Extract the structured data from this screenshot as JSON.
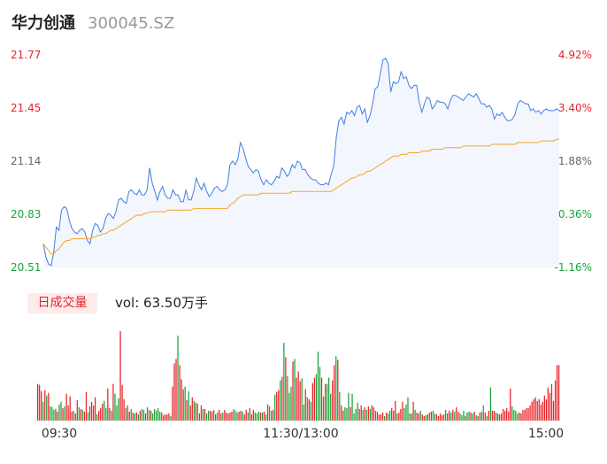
{
  "header": {
    "name": "华力创通",
    "code": "300045.SZ"
  },
  "volume_panel": {
    "tab_label": "日成交量",
    "vol_text": "vol: 63.50万手"
  },
  "colors": {
    "price_line": "#3f7fe0",
    "avg_line": "#f5a524",
    "area_fill": "#f3f6fd",
    "up": "#e8232a",
    "down": "#1aa33a",
    "neutral": "#666666"
  },
  "chart_data": [
    {
      "type": "line",
      "title": "",
      "y_ticks_left": [
        "21.77",
        "21.45",
        "21.14",
        "20.83",
        "20.51"
      ],
      "y_ticks_right": [
        "4.92%",
        "3.40%",
        "1.88%",
        "0.36%",
        "-1.16%"
      ],
      "ylim": [
        20.51,
        21.77
      ],
      "x_ticks": [
        "09:30",
        "11:30/13:00",
        "15:00"
      ],
      "series": [
        {
          "values": [
            20.65,
            20.57,
            20.53,
            20.52,
            20.6,
            20.75,
            20.73,
            20.85,
            20.87,
            20.86,
            20.79,
            20.74,
            20.72,
            20.71,
            20.73,
            20.74,
            20.72,
            20.67,
            20.65,
            20.73,
            20.77,
            20.76,
            20.72,
            20.74,
            20.8,
            20.83,
            20.82,
            20.8,
            20.84,
            20.91,
            20.92,
            20.9,
            20.89,
            20.96,
            20.97,
            20.95,
            20.94,
            20.97,
            20.94,
            20.94,
            20.97,
            21.1,
            21.01,
            20.96,
            20.91,
            20.96,
            20.99,
            20.94,
            20.92,
            20.92,
            20.97,
            20.94,
            20.94,
            20.9,
            20.9,
            20.97,
            20.91,
            20.91,
            20.96,
            21.04,
            21.0,
            20.97,
            21.01,
            20.96,
            20.93,
            20.95,
            20.98,
            20.99,
            20.97,
            20.96,
            20.97,
            21.0,
            21.12,
            21.14,
            21.12,
            21.15,
            21.25,
            21.22,
            21.16,
            21.11,
            21.09,
            21.07,
            21.09,
            21.08,
            21.03,
            21.0,
            21.03,
            21.01,
            21.0,
            21.02,
            21.05,
            21.04,
            21.1,
            21.08,
            21.05,
            21.07,
            21.12,
            21.1,
            21.14,
            21.13,
            21.09,
            21.09,
            21.06,
            21.04,
            21.03,
            21.03,
            21.01,
            21.0,
            21.0,
            21.01,
            21.0,
            21.06,
            21.11,
            21.28,
            21.38,
            21.4,
            21.36,
            21.43,
            21.42,
            21.44,
            21.41,
            21.46,
            21.47,
            21.42,
            21.45,
            21.37,
            21.41,
            21.48,
            21.57,
            21.58,
            21.66,
            21.74,
            21.75,
            21.72,
            21.55,
            21.61,
            21.6,
            21.61,
            21.67,
            21.63,
            21.64,
            21.59,
            21.57,
            21.59,
            21.59,
            21.49,
            21.43,
            21.48,
            21.52,
            21.51,
            21.45,
            21.47,
            21.5,
            21.49,
            21.49,
            21.48,
            21.45,
            21.5,
            21.53,
            21.53,
            21.52,
            21.51,
            21.5,
            21.52,
            21.54,
            21.53,
            21.52,
            21.54,
            21.51,
            21.48,
            21.48,
            21.46,
            21.47,
            21.45,
            21.39,
            21.42,
            21.41,
            21.43,
            21.4,
            21.38,
            21.38,
            21.39,
            21.42,
            21.48,
            21.5,
            21.49,
            21.48,
            21.48,
            21.44,
            21.45,
            21.43,
            21.44,
            21.42,
            21.44,
            21.45,
            21.44,
            21.44,
            21.44,
            21.45,
            21.44
          ]
        },
        {
          "values": [
            20.65,
            20.63,
            20.61,
            20.59,
            20.59,
            20.61,
            20.62,
            20.64,
            20.66,
            20.67,
            20.67,
            20.68,
            20.68,
            20.68,
            20.68,
            20.68,
            20.68,
            20.68,
            20.68,
            20.69,
            20.69,
            20.7,
            20.7,
            20.71,
            20.71,
            20.72,
            20.73,
            20.73,
            20.74,
            20.75,
            20.76,
            20.77,
            20.78,
            20.79,
            20.8,
            20.81,
            20.82,
            20.82,
            20.82,
            20.83,
            20.83,
            20.84,
            20.84,
            20.84,
            20.84,
            20.84,
            20.84,
            20.84,
            20.85,
            20.85,
            20.85,
            20.85,
            20.85,
            20.85,
            20.85,
            20.85,
            20.85,
            20.85,
            20.86,
            20.86,
            20.86,
            20.86,
            20.86,
            20.86,
            20.86,
            20.86,
            20.86,
            20.86,
            20.86,
            20.86,
            20.86,
            20.86,
            20.88,
            20.89,
            20.9,
            20.92,
            20.93,
            20.94,
            20.94,
            20.94,
            20.94,
            20.94,
            20.94,
            20.94,
            20.95,
            20.95,
            20.95,
            20.95,
            20.95,
            20.95,
            20.95,
            20.95,
            20.95,
            20.95,
            20.95,
            20.95,
            20.96,
            20.96,
            20.96,
            20.96,
            20.96,
            20.96,
            20.96,
            20.96,
            20.96,
            20.96,
            20.96,
            20.96,
            20.96,
            20.96,
            20.96,
            20.96,
            20.97,
            20.98,
            20.99,
            21.0,
            21.01,
            21.02,
            21.03,
            21.04,
            21.04,
            21.05,
            21.06,
            21.06,
            21.07,
            21.08,
            21.08,
            21.09,
            21.1,
            21.11,
            21.12,
            21.13,
            21.14,
            21.15,
            21.16,
            21.17,
            21.17,
            21.17,
            21.18,
            21.18,
            21.18,
            21.19,
            21.19,
            21.19,
            21.19,
            21.19,
            21.2,
            21.2,
            21.2,
            21.2,
            21.21,
            21.21,
            21.21,
            21.21,
            21.21,
            21.22,
            21.22,
            21.22,
            21.22,
            21.22,
            21.22,
            21.22,
            21.23,
            21.23,
            21.23,
            21.23,
            21.23,
            21.23,
            21.23,
            21.23,
            21.23,
            21.23,
            21.23,
            21.24,
            21.24,
            21.24,
            21.24,
            21.24,
            21.24,
            21.24,
            21.24,
            21.24,
            21.24,
            21.25,
            21.25,
            21.25,
            21.25,
            21.25,
            21.25,
            21.25,
            21.25,
            21.25,
            21.26,
            21.26,
            21.26,
            21.26,
            21.26,
            21.26,
            21.27,
            21.27
          ]
        }
      ]
    },
    {
      "type": "bar",
      "title": "",
      "ylim": [
        0,
        1
      ],
      "values": [
        0.41,
        0.4,
        0.33,
        0.21,
        0.34,
        0.28,
        0.31,
        0.16,
        0.15,
        0.12,
        0.13,
        0.1,
        0.18,
        0.21,
        0.14,
        0.16,
        0.3,
        0.17,
        0.27,
        0.1,
        0.11,
        0.08,
        0.23,
        0.15,
        0.13,
        0.12,
        0.1,
        0.32,
        0.09,
        0.16,
        0.21,
        0.17,
        0.26,
        0.07,
        0.11,
        0.14,
        0.19,
        0.22,
        0.14,
        0.36,
        0.14,
        0.11,
        0.41,
        0.3,
        0.17,
        0.25,
        1.0,
        0.4,
        0.24,
        0.14,
        0.17,
        0.1,
        0.13,
        0.09,
        0.08,
        0.09,
        0.07,
        0.11,
        0.13,
        0.12,
        0.08,
        0.15,
        0.12,
        0.11,
        0.08,
        0.13,
        0.11,
        0.14,
        0.1,
        0.09,
        0.06,
        0.07,
        0.07,
        0.08,
        0.05,
        0.38,
        0.64,
        0.69,
        0.95,
        0.62,
        0.46,
        0.35,
        0.38,
        0.23,
        0.33,
        0.17,
        0.26,
        0.22,
        0.2,
        0.19,
        0.08,
        0.17,
        0.13,
        0.13,
        0.08,
        0.11,
        0.11,
        0.1,
        0.12,
        0.07,
        0.09,
        0.12,
        0.08,
        0.09,
        0.12,
        0.09,
        0.08,
        0.09,
        0.1,
        0.13,
        0.11,
        0.09,
        0.1,
        0.11,
        0.1,
        0.07,
        0.12,
        0.09,
        0.14,
        0.07,
        0.12,
        0.09,
        0.08,
        0.1,
        0.09,
        0.09,
        0.1,
        0.07,
        0.18,
        0.16,
        0.11,
        0.12,
        0.29,
        0.32,
        0.34,
        0.45,
        0.49,
        0.87,
        0.71,
        0.5,
        0.31,
        0.38,
        0.66,
        0.69,
        0.48,
        0.55,
        0.44,
        0.47,
        0.18,
        0.35,
        0.26,
        0.24,
        0.21,
        0.42,
        0.48,
        0.52,
        0.77,
        0.6,
        0.48,
        0.27,
        0.41,
        0.41,
        0.48,
        0.3,
        0.45,
        0.62,
        0.72,
        0.68,
        0.32,
        0.17,
        0.11,
        0.15,
        0.14,
        0.31,
        0.15,
        0.3,
        0.08,
        0.13,
        0.2,
        0.13,
        0.17,
        0.12,
        0.15,
        0.12,
        0.16,
        0.13,
        0.17,
        0.15,
        0.11,
        0.1,
        0.07,
        0.07,
        0.09,
        0.05,
        0.09,
        0.08,
        0.11,
        0.14,
        0.11,
        0.22,
        0.08,
        0.09,
        0.13,
        0.21,
        0.14,
        0.18,
        0.26,
        0.08,
        0.08,
        0.21,
        0.12,
        0.09,
        0.08,
        0.11,
        0.07,
        0.05,
        0.06,
        0.07,
        0.09,
        0.1,
        0.11,
        0.08,
        0.07,
        0.05,
        0.08,
        0.06,
        0.07,
        0.12,
        0.08,
        0.11,
        0.09,
        0.12,
        0.1,
        0.15,
        0.1,
        0.08,
        0.06,
        0.11,
        0.05,
        0.09,
        0.1,
        0.09,
        0.08,
        0.1,
        0.06,
        0.05,
        0.09,
        0.1,
        0.17,
        0.09,
        0.05,
        0.11,
        0.37,
        0.11,
        0.11,
        0.09,
        0.08,
        0.07,
        0.08,
        0.13,
        0.11,
        0.14,
        0.1,
        0.36,
        0.16,
        0.12,
        0.11,
        0.08,
        0.09,
        0.08,
        0.12,
        0.12,
        0.14,
        0.14,
        0.17,
        0.21,
        0.24,
        0.26,
        0.22,
        0.24,
        0.18,
        0.21,
        0.28,
        0.24,
        0.37,
        0.31,
        0.41,
        0.22,
        0.45,
        0.62,
        0.62
      ],
      "directions": "rrrgrgrgggrrggrgrrrrgrrgrgrrgrrrrgrrrggrrgrgggrrrgrrgrgrgrggrggrgggggrrrrrgrrrgrrrgrgrrgrgrrgrggrrgrgrrgrrrrrgggrrgrrgrrrgggrgrgrggrgrrgrgrgggrgrrrggrgrgrrgggrgrgggrrgrgrrgggrggggrrgrgrgrrgrrrrgrggrrrgrrrggggrrgrrgrrgrgrggrrrrggrrgrgrrgggrggrgrgrgrgrgrgrrgrrrrrrrrggggrrrrrrrrrrrrrrrrrrrrrrrrrrrrrrrrrrrrrrrrrrrrrrrrrrrrrrrrrrrrrrrrr"
    }
  ]
}
